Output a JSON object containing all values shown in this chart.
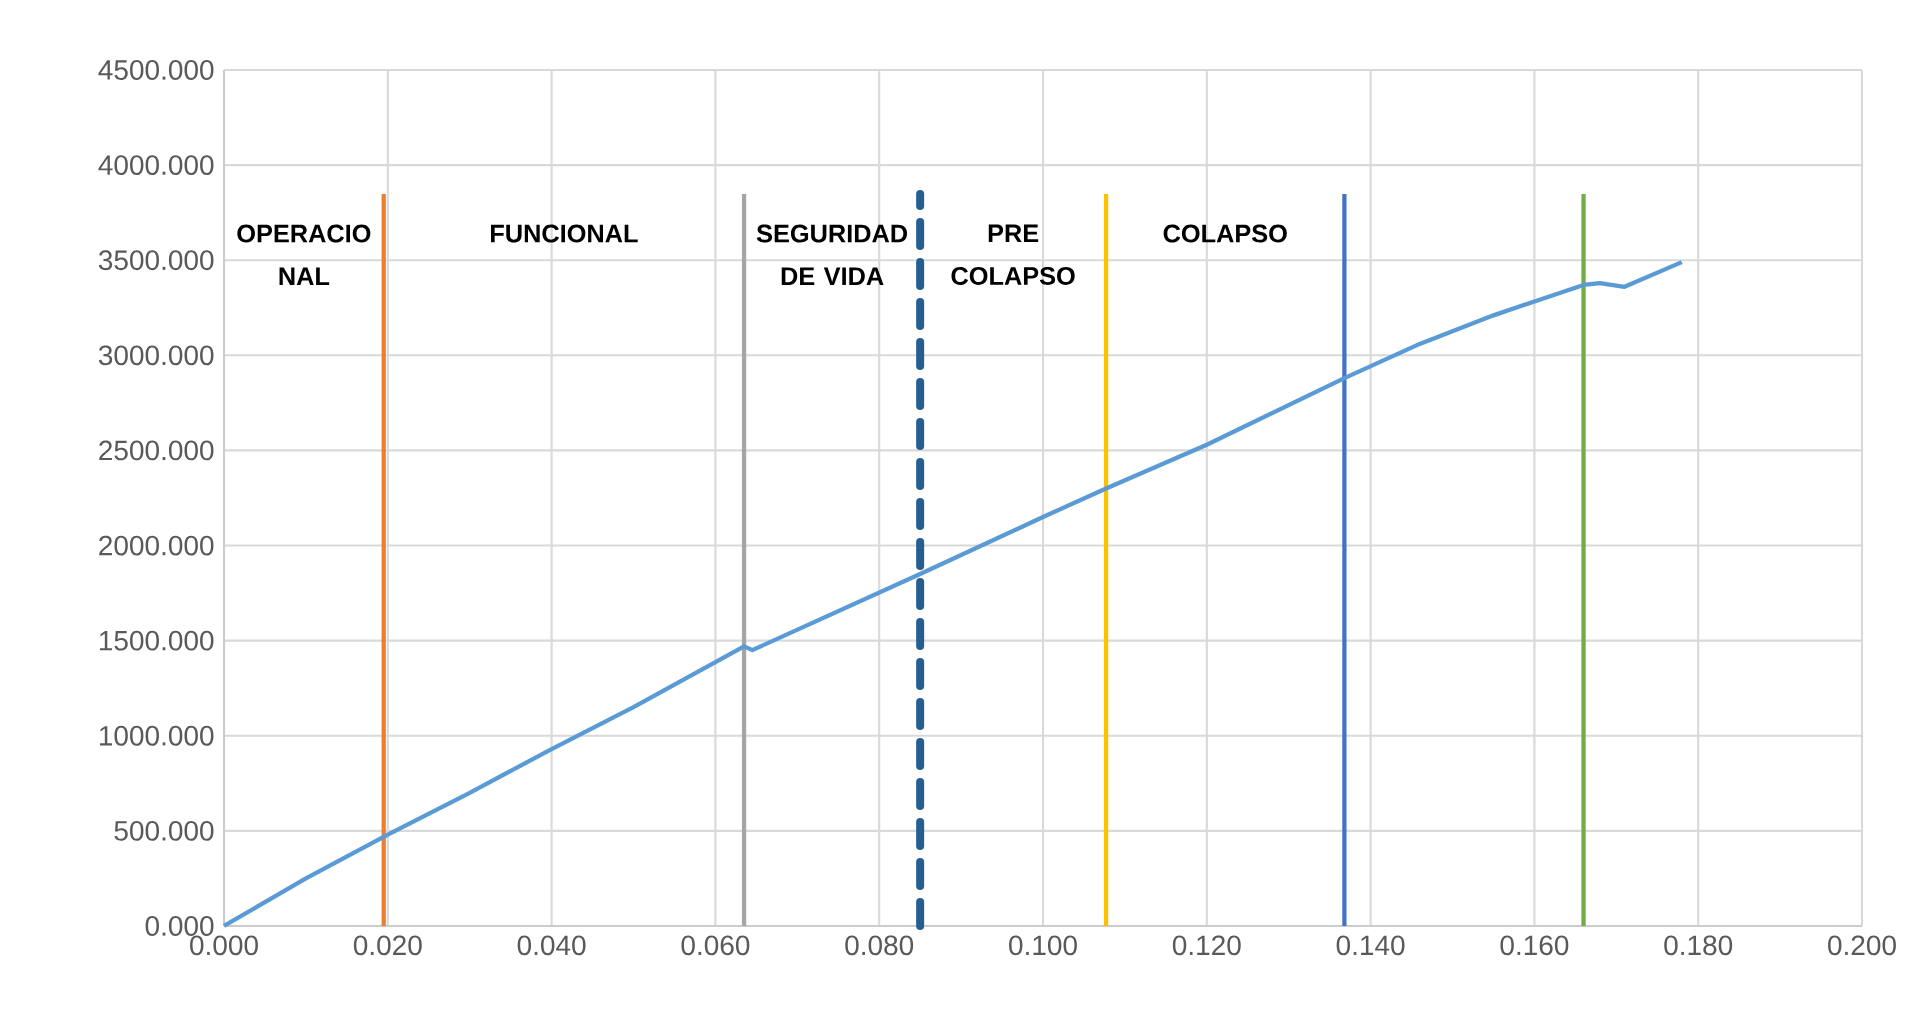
{
  "chart_data": {
    "type": "line",
    "x": [
      0,
      0.01,
      0.02,
      0.03,
      0.04,
      0.05,
      0.0635,
      0.0645,
      0.085,
      0.1,
      0.1077,
      0.12,
      0.1368,
      0.146,
      0.155,
      0.166,
      0.168,
      0.171,
      0.178
    ],
    "series": [
      {
        "color": "#5b9bd5",
        "values": [
          0,
          250,
          480,
          700,
          930,
          1150,
          1470,
          1450,
          1850,
          2150,
          2300,
          2530,
          2880,
          3060,
          3210,
          3370,
          3380,
          3360,
          3490
        ]
      }
    ],
    "xlim": [
      0,
      0.2
    ],
    "xticks": [
      {
        "value": 0,
        "label": "0.000"
      },
      {
        "value": 0.02,
        "label": "0.020"
      },
      {
        "value": 0.04,
        "label": "0.040"
      },
      {
        "value": 0.06,
        "label": "0.060"
      },
      {
        "value": 0.08,
        "label": "0.080"
      },
      {
        "value": 0.1,
        "label": "0.100"
      },
      {
        "value": 0.12,
        "label": "0.120"
      },
      {
        "value": 0.14,
        "label": "0.140"
      },
      {
        "value": 0.16,
        "label": "0.160"
      },
      {
        "value": 0.18,
        "label": "0.180"
      },
      {
        "value": 0.2,
        "label": "0.200"
      }
    ],
    "ylim": [
      0,
      4500
    ],
    "yticks": [
      {
        "value": 0,
        "label": "0.000"
      },
      {
        "value": 500,
        "label": "500.000"
      },
      {
        "value": 1000,
        "label": "1000.000"
      },
      {
        "value": 1500,
        "label": "1500.000"
      },
      {
        "value": 2000,
        "label": "2000.000"
      },
      {
        "value": 2500,
        "label": "2500.000"
      },
      {
        "value": 3000,
        "label": "3000.000"
      },
      {
        "value": 3500,
        "label": "3500.000"
      },
      {
        "value": 4000,
        "label": "4000.000"
      },
      {
        "value": 4500,
        "label": "4500.000"
      }
    ],
    "grid": true,
    "marker": "none",
    "line_style": "solid",
    "ref_lines": [
      {
        "axis": "x",
        "value": 0.0195,
        "color": "#ed7d31"
      },
      {
        "axis": "x",
        "value": 0.0635,
        "color": "#a5a5a5"
      },
      {
        "axis": "x",
        "value": 0.085,
        "color": "#255e91",
        "line_style": "dashed"
      },
      {
        "axis": "x",
        "value": 0.1077,
        "color": "#ffc000"
      },
      {
        "axis": "x",
        "value": 0.1368,
        "color": "#4472c4"
      },
      {
        "axis": "x",
        "value": 0.166,
        "color": "#70ad47"
      }
    ],
    "annotations": [
      "OPERACIO NAL",
      "FUNCIONAL",
      "SEGURIDAD DE VIDA",
      "PRE COLAPSO",
      "COLAPSO"
    ]
  }
}
